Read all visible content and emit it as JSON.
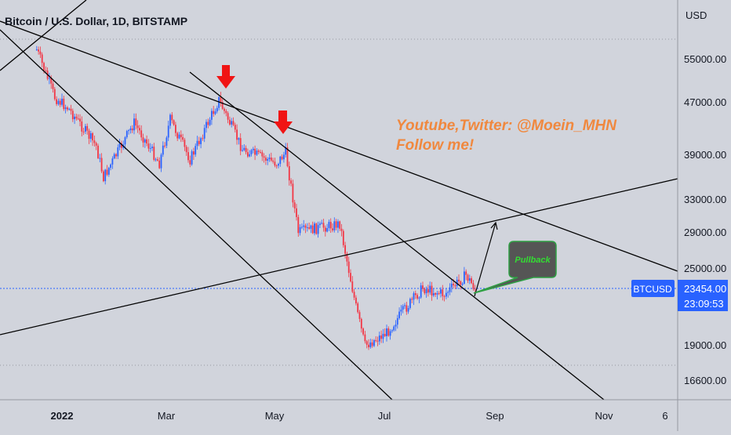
{
  "chart_title": "Bitcoin / U.S. Dollar, 1D, BITSTAMP",
  "colors": {
    "background": "#d1d4dc",
    "up_candle": "#2962ff",
    "down_candle": "#f23645",
    "trendline": "#000000",
    "arrow_marker": "#f01414",
    "annotation_text": "#f0883e",
    "price_label_bg": "#2962ff",
    "pullback_bg": "#555555",
    "pullback_border": "#2ea043",
    "pullback_text": "#33dd33"
  },
  "annotation": {
    "line1": "Youtube,Twitter: @Moein_MHN",
    "line2": "Follow me!"
  },
  "callout": {
    "label": "Pullback"
  },
  "price_tag": {
    "symbol": "BTCUSD",
    "price": "23454.00",
    "countdown": "23:09:53"
  },
  "chart_data": {
    "type": "candlestick",
    "title": "Bitcoin / U.S. Dollar, 1D, BITSTAMP",
    "y_unit_label": "USD",
    "y_ticks": [
      "55000.00",
      "47000.00",
      "39000.00",
      "33000.00",
      "29000.00",
      "25000.00",
      "19000.00",
      "16600.00"
    ],
    "x_ticks": [
      "2022",
      "Mar",
      "May",
      "Jul",
      "Sep",
      "Nov",
      "6"
    ],
    "last_price": 23454,
    "approx_close_path": [
      {
        "date": "2021-12-18",
        "price": 57000
      },
      {
        "date": "2021-12-28",
        "price": 48000
      },
      {
        "date": "2022-01-05",
        "price": 46000
      },
      {
        "date": "2022-01-20",
        "price": 40500
      },
      {
        "date": "2022-01-24",
        "price": 36000
      },
      {
        "date": "2022-02-10",
        "price": 44000
      },
      {
        "date": "2022-02-24",
        "price": 38000
      },
      {
        "date": "2022-03-02",
        "price": 44500
      },
      {
        "date": "2022-03-13",
        "price": 38500
      },
      {
        "date": "2022-03-29",
        "price": 47500
      },
      {
        "date": "2022-04-11",
        "price": 40000
      },
      {
        "date": "2022-04-30",
        "price": 38000
      },
      {
        "date": "2022-05-05",
        "price": 39500
      },
      {
        "date": "2022-05-12",
        "price": 29000
      },
      {
        "date": "2022-06-04",
        "price": 30000
      },
      {
        "date": "2022-06-13",
        "price": 22000
      },
      {
        "date": "2022-06-18",
        "price": 19000
      },
      {
        "date": "2022-06-30",
        "price": 20000
      },
      {
        "date": "2022-07-08",
        "price": 21500
      },
      {
        "date": "2022-07-20",
        "price": 23500
      },
      {
        "date": "2022-08-01",
        "price": 23000
      },
      {
        "date": "2022-08-13",
        "price": 24500
      },
      {
        "date": "2022-08-18",
        "price": 23454
      }
    ]
  }
}
